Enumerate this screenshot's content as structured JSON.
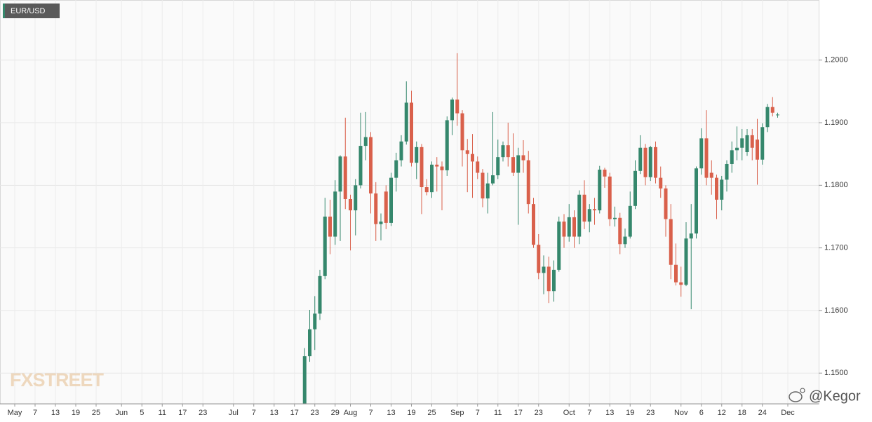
{
  "chart_data": {
    "type": "candlestick",
    "title": "EUR/USD",
    "logo": "FXSTREET",
    "credit": "@Kegor",
    "up_color": "#35876c",
    "down_color": "#d9604b",
    "grid": true,
    "ylim": [
      1.1451,
      1.2096
    ],
    "yticks": [
      {
        "value": 1.15,
        "label": "1.1500"
      },
      {
        "value": 1.16,
        "label": "1.1600"
      },
      {
        "value": 1.17,
        "label": "1.1700"
      },
      {
        "value": 1.18,
        "label": "1.1800"
      },
      {
        "value": 1.19,
        "label": "1.1900"
      },
      {
        "value": 1.2,
        "label": "1.2000"
      }
    ],
    "categories": [
      "May",
      null,
      null,
      null,
      "7",
      null,
      null,
      null,
      "13",
      null,
      null,
      null,
      "19",
      null,
      null,
      null,
      "25",
      null,
      null,
      null,
      null,
      "Jun",
      null,
      null,
      null,
      "5",
      null,
      null,
      null,
      "11",
      null,
      null,
      null,
      "17",
      null,
      null,
      null,
      "23",
      null,
      null,
      null,
      null,
      null,
      "Jul",
      null,
      null,
      null,
      "7",
      null,
      null,
      null,
      "13",
      null,
      null,
      null,
      "17",
      null,
      null,
      null,
      "23",
      null,
      null,
      null,
      "29",
      null,
      null,
      "Aug",
      null,
      null,
      null,
      "7",
      null,
      null,
      null,
      "13",
      null,
      null,
      null,
      "19",
      null,
      null,
      null,
      "25",
      null,
      null,
      null,
      null,
      "Sep",
      null,
      null,
      null,
      "7",
      null,
      null,
      null,
      "11",
      null,
      null,
      null,
      "17",
      null,
      null,
      null,
      "23",
      null,
      null,
      null,
      null,
      null,
      "Oct",
      null,
      null,
      null,
      "7",
      null,
      null,
      null,
      "13",
      null,
      null,
      null,
      "19",
      null,
      null,
      null,
      "23",
      null,
      null,
      null,
      null,
      null,
      "Nov",
      null,
      null,
      null,
      "6",
      null,
      null,
      null,
      "12",
      null,
      null,
      null,
      "18",
      null,
      null,
      null,
      "24",
      null,
      null,
      null,
      null,
      "Dec"
    ],
    "open": [
      null,
      null,
      null,
      null,
      null,
      null,
      null,
      null,
      null,
      null,
      null,
      null,
      null,
      null,
      null,
      null,
      null,
      null,
      null,
      null,
      null,
      null,
      null,
      null,
      null,
      null,
      null,
      null,
      null,
      null,
      null,
      null,
      null,
      null,
      null,
      null,
      null,
      null,
      null,
      null,
      null,
      null,
      null,
      null,
      null,
      null,
      null,
      null,
      null,
      null,
      null,
      null,
      null,
      null,
      null,
      null,
      null,
      1.144,
      1.1527,
      1.157,
      1.1595,
      1.1655,
      1.175,
      1.1718,
      1.179,
      1.1846,
      1.1778,
      1.176,
      1.18,
      1.1863,
      1.1877,
      1.1787,
      1.1738,
      1.179,
      1.174,
      1.1812,
      1.184,
      1.187,
      1.1932,
      1.1836,
      1.1861,
      1.1797,
      1.1789,
      1.1833,
      1.183,
      1.1824,
      1.1904,
      1.1937,
      1.1915,
      1.1856,
      1.185,
      1.1838,
      1.182,
      1.1779,
      1.1803,
      1.1816,
      1.1845,
      1.1864,
      1.1845,
      1.182,
      1.1848,
      1.184,
      1.177,
      1.1705,
      1.166,
      1.167,
      1.1631,
      1.1665,
      1.1742,
      1.1718,
      1.1749,
      1.1718,
      1.1785,
      1.1742,
      1.1762,
      1.176,
      1.1825,
      1.1814,
      1.1746,
      1.1748,
      1.1706,
      1.1718,
      1.1767,
      1.1823,
      1.186,
      1.1813,
      1.1861,
      1.1812,
      1.1795,
      1.1746,
      1.1673,
      1.1645,
      1.1641,
      1.1715,
      1.1723,
      1.1827,
      1.1875,
      1.182,
      1.1812,
      1.1777,
      1.1809,
      1.1834,
      1.1856,
      1.186,
      1.1853,
      1.188,
      1.1873,
      1.1841,
      1.1893,
      1.1925,
      1.1913,
      null,
      null
    ],
    "high": [
      null,
      null,
      null,
      null,
      null,
      null,
      null,
      null,
      null,
      null,
      null,
      null,
      null,
      null,
      null,
      null,
      null,
      null,
      null,
      null,
      null,
      null,
      null,
      null,
      null,
      null,
      null,
      null,
      null,
      null,
      null,
      null,
      null,
      null,
      null,
      null,
      null,
      null,
      null,
      null,
      null,
      null,
      null,
      null,
      null,
      null,
      null,
      null,
      null,
      null,
      null,
      null,
      null,
      null,
      null,
      null,
      null,
      1.154,
      1.1601,
      1.1623,
      1.1665,
      1.178,
      1.1777,
      1.1808,
      1.1848,
      1.1908,
      1.1785,
      1.181,
      1.1916,
      1.1917,
      1.1885,
      1.1805,
      1.1755,
      1.18,
      1.182,
      1.1852,
      1.188,
      1.1966,
      1.1951,
      1.187,
      1.1866,
      1.181,
      1.1838,
      1.1845,
      1.1838,
      1.191,
      1.194,
      1.2011,
      1.192,
      1.1874,
      1.1882,
      1.1846,
      1.1826,
      1.182,
      1.1917,
      1.1873,
      1.187,
      1.19,
      1.1883,
      1.186,
      1.1872,
      1.1855,
      1.178,
      1.1722,
      1.1688,
      1.1686,
      1.168,
      1.175,
      1.1754,
      1.177,
      1.176,
      1.1792,
      1.1808,
      1.177,
      1.178,
      1.1831,
      1.1828,
      1.182,
      1.1766,
      1.1756,
      1.1731,
      1.179,
      1.184,
      1.188,
      1.1866,
      1.1863,
      1.187,
      1.183,
      1.18,
      1.177,
      1.1707,
      1.167,
      1.1741,
      1.177,
      1.183,
      1.1891,
      1.192,
      1.184,
      1.1817,
      1.1815,
      1.184,
      1.187,
      1.1894,
      1.189,
      1.189,
      1.189,
      1.1906,
      1.1899,
      1.193,
      1.1941,
      1.1916,
      null,
      null
    ],
    "low": [
      null,
      null,
      null,
      null,
      null,
      null,
      null,
      null,
      null,
      null,
      null,
      null,
      null,
      null,
      null,
      null,
      null,
      null,
      null,
      null,
      null,
      null,
      null,
      null,
      null,
      null,
      null,
      null,
      null,
      null,
      null,
      null,
      null,
      null,
      null,
      null,
      null,
      null,
      null,
      null,
      null,
      null,
      null,
      null,
      null,
      null,
      null,
      null,
      null,
      null,
      null,
      null,
      null,
      null,
      null,
      null,
      null,
      1.1428,
      1.1518,
      1.1537,
      1.1585,
      1.165,
      1.169,
      1.1705,
      1.1711,
      1.1762,
      1.1696,
      1.172,
      1.1795,
      1.184,
      1.1755,
      1.1711,
      1.1712,
      1.173,
      1.1735,
      1.179,
      1.183,
      1.1865,
      1.183,
      1.181,
      1.1754,
      1.1784,
      1.178,
      1.179,
      1.176,
      1.1815,
      1.188,
      1.1895,
      1.183,
      1.1789,
      1.178,
      1.181,
      1.1765,
      1.1755,
      1.18,
      1.181,
      1.1838,
      1.183,
      1.1815,
      1.1737,
      1.182,
      1.1755,
      1.17,
      1.165,
      1.1626,
      1.1612,
      1.1614,
      1.1662,
      1.17,
      1.171,
      1.17,
      1.1706,
      1.173,
      1.1725,
      1.1737,
      1.1755,
      1.1796,
      1.1735,
      1.1734,
      1.169,
      1.17,
      1.1715,
      1.1762,
      1.1818,
      1.18,
      1.1807,
      1.1803,
      1.178,
      1.1718,
      1.165,
      1.164,
      1.1622,
      1.1639,
      1.1602,
      1.1715,
      1.1817,
      1.18,
      1.1785,
      1.1746,
      1.176,
      1.179,
      1.182,
      1.184,
      1.184,
      1.1847,
      1.184,
      1.1801,
      1.1833,
      1.1885,
      1.191,
      1.1908,
      null,
      null
    ],
    "close": [
      null,
      null,
      null,
      null,
      null,
      null,
      null,
      null,
      null,
      null,
      null,
      null,
      null,
      null,
      null,
      null,
      null,
      null,
      null,
      null,
      null,
      null,
      null,
      null,
      null,
      null,
      null,
      null,
      null,
      null,
      null,
      null,
      null,
      null,
      null,
      null,
      null,
      null,
      null,
      null,
      null,
      null,
      null,
      null,
      null,
      null,
      null,
      null,
      null,
      null,
      null,
      null,
      null,
      null,
      null,
      null,
      null,
      1.1527,
      1.157,
      1.1595,
      1.1655,
      1.175,
      1.1718,
      1.179,
      1.1846,
      1.1778,
      1.176,
      1.18,
      1.1863,
      1.1877,
      1.1787,
      1.1738,
      1.1742,
      1.174,
      1.1812,
      1.184,
      1.187,
      1.1932,
      1.1836,
      1.1861,
      1.1797,
      1.1789,
      1.1833,
      1.183,
      1.1824,
      1.1904,
      1.1937,
      1.1915,
      1.1856,
      1.185,
      1.1838,
      1.182,
      1.1779,
      1.1803,
      1.1816,
      1.1845,
      1.1864,
      1.1845,
      1.182,
      1.1848,
      1.184,
      1.177,
      1.1705,
      1.166,
      1.167,
      1.1631,
      1.1665,
      1.1742,
      1.1718,
      1.1749,
      1.1718,
      1.1785,
      1.1742,
      1.1762,
      1.176,
      1.1825,
      1.1814,
      1.1746,
      1.1748,
      1.1706,
      1.1718,
      1.1767,
      1.1823,
      1.186,
      1.1813,
      1.1861,
      1.1812,
      1.1795,
      1.1746,
      1.1673,
      1.1645,
      1.1641,
      1.1715,
      1.1723,
      1.1827,
      1.1875,
      1.1812,
      1.1812,
      1.1777,
      1.1809,
      1.1834,
      1.1856,
      1.186,
      1.1875,
      1.188,
      1.186,
      1.1841,
      1.1893,
      1.1925,
      1.1916,
      1.1913,
      null,
      null
    ]
  }
}
